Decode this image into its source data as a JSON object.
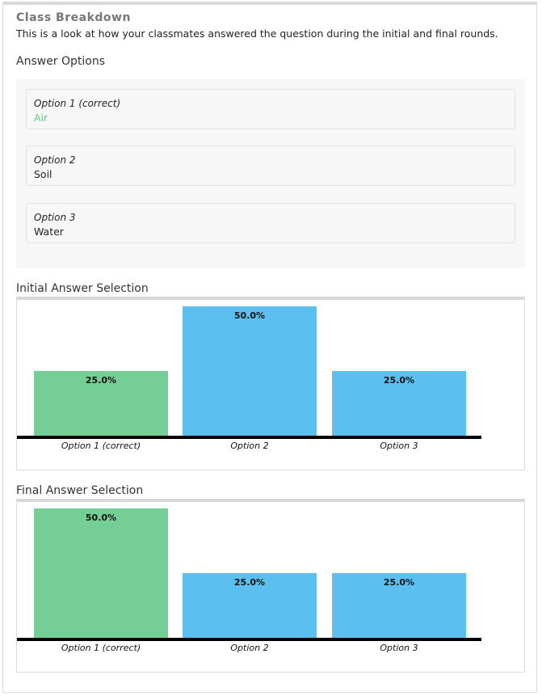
{
  "header": {
    "title": "Class Breakdown",
    "subtitle": "This is a look at how your classmates answered the question during the initial and final rounds."
  },
  "answer_options": {
    "heading": "Answer Options",
    "items": [
      {
        "label": "Option 1 (correct)",
        "value": "Air",
        "correct": true
      },
      {
        "label": "Option 2",
        "value": "Soil",
        "correct": false
      },
      {
        "label": "Option 3",
        "value": "Water",
        "correct": false
      }
    ]
  },
  "colors": {
    "correct": "#74cf95",
    "other": "#5bc0f0",
    "correct_text": "#5fcf80"
  },
  "chart_data": [
    {
      "type": "bar",
      "title": "Initial Answer Selection",
      "categories": [
        "Option 1 (correct)",
        "Option 2",
        "Option 3"
      ],
      "values": [
        25.0,
        50.0,
        25.0
      ],
      "labels": [
        "25.0%",
        "50.0%",
        "25.0%"
      ]
    },
    {
      "type": "bar",
      "title": "Final Answer Selection",
      "categories": [
        "Option 1 (correct)",
        "Option 2",
        "Option 3"
      ],
      "values": [
        50.0,
        25.0,
        25.0
      ],
      "labels": [
        "50.0%",
        "25.0%",
        "25.0%"
      ]
    }
  ]
}
